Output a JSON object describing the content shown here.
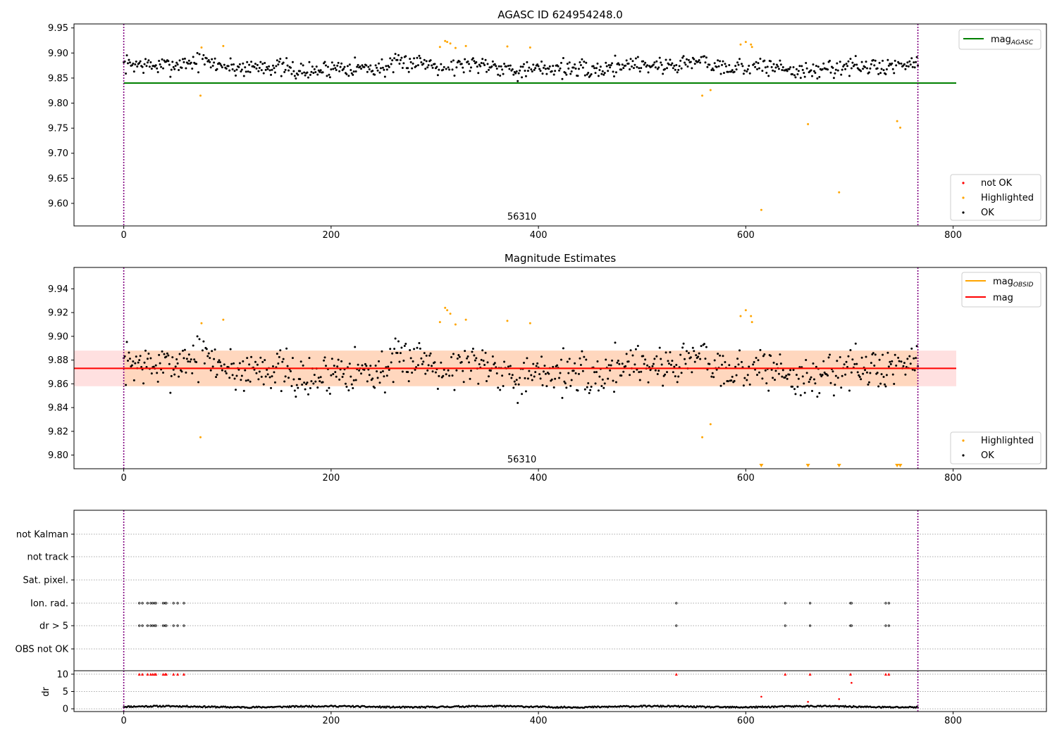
{
  "chart_data": [
    {
      "type": "scatter",
      "title": "AGASC ID 624954248.0",
      "xlim": [
        -48,
        890
      ],
      "ylim": [
        9.555,
        9.958
      ],
      "x_ticks": [
        0,
        200,
        400,
        600,
        800
      ],
      "y_ticks": [
        9.6,
        9.65,
        9.7,
        9.75,
        9.8,
        9.85,
        9.9,
        9.95
      ],
      "y_tick_labels": [
        "9.60",
        "9.65",
        "9.70",
        "9.75",
        "9.80",
        "9.85",
        "9.90",
        "9.95"
      ],
      "obsid_annotation": "56310",
      "obsid_x": 384,
      "vlines": [
        0,
        766
      ],
      "mag_agasc": 9.84,
      "mag_agasc_xrange": [
        0,
        803
      ],
      "ok_pattern": {
        "n": 767,
        "mean": 9.873,
        "amplitude": 0.018,
        "seed": 7
      },
      "highlighted_points": [
        [
          74,
          9.815
        ],
        [
          75,
          9.911
        ],
        [
          96,
          9.914
        ],
        [
          305,
          9.912
        ],
        [
          310,
          9.924
        ],
        [
          312,
          9.922
        ],
        [
          315,
          9.919
        ],
        [
          320,
          9.91
        ],
        [
          330,
          9.914
        ],
        [
          370,
          9.913
        ],
        [
          392,
          9.911
        ],
        [
          558,
          9.815
        ],
        [
          566,
          9.826
        ],
        [
          595,
          9.917
        ],
        [
          600,
          9.922
        ],
        [
          605,
          9.917
        ],
        [
          606,
          9.912
        ],
        [
          615,
          9.587
        ],
        [
          660,
          9.758
        ],
        [
          690,
          9.622
        ],
        [
          746,
          9.764
        ],
        [
          749,
          9.751
        ]
      ],
      "legend_top": [
        {
          "label": "mag",
          "sub": "AGASC",
          "color": "#008000"
        }
      ],
      "legend_bottom": [
        {
          "label": "not OK",
          "color": "#ff0000"
        },
        {
          "label": "Highlighted",
          "color": "#ffa500"
        },
        {
          "label": "OK",
          "color": "#000000"
        }
      ]
    },
    {
      "type": "scatter",
      "title": "Magnitude Estimates",
      "xlim": [
        -48,
        890
      ],
      "ylim": [
        9.7885,
        9.958
      ],
      "x_ticks": [
        0,
        200,
        400,
        600,
        800
      ],
      "y_ticks": [
        9.8,
        9.82,
        9.84,
        9.86,
        9.88,
        9.9,
        9.92,
        9.94
      ],
      "y_tick_labels": [
        "9.80",
        "9.82",
        "9.84",
        "9.86",
        "9.88",
        "9.90",
        "9.92",
        "9.94"
      ],
      "obsid_annotation": "56310",
      "obsid_x": 384,
      "vlines": [
        0,
        766
      ],
      "mag": 9.873,
      "mag_band": [
        9.858,
        9.888
      ],
      "mag_obsid_band": [
        9.858,
        9.888
      ],
      "band_xrange": [
        -48,
        803
      ],
      "obsid_band_xrange": [
        0,
        766
      ],
      "offscale_markers_x": [
        615,
        660,
        690,
        746,
        749
      ],
      "legend_top": [
        {
          "label": "mag",
          "sub": "OBSID",
          "color": "#ffa500"
        },
        {
          "label": "mag",
          "sub": "",
          "color": "#ff0000"
        }
      ],
      "legend_bottom": [
        {
          "label": "Highlighted",
          "color": "#ffa500"
        },
        {
          "label": "OK",
          "color": "#000000"
        }
      ]
    },
    {
      "type": "scatter",
      "title": "",
      "xlim": [
        -48,
        890
      ],
      "x_ticks": [
        0,
        200,
        400,
        600,
        800
      ],
      "flag_rows": [
        "not Kalman",
        "not track",
        "Sat. pixel.",
        "Ion. rad.",
        "dr > 5",
        "OBS not OK"
      ],
      "flag_x": [
        15,
        18,
        23,
        26,
        28,
        30,
        31,
        38,
        40,
        41,
        48,
        52,
        58,
        533,
        638,
        662,
        701,
        702,
        735,
        738
      ],
      "ylabel": "dr",
      "dr_ylim": [
        -0.8,
        11
      ],
      "dr_ticks": [
        0,
        5,
        10
      ],
      "dr_tick_labels": [
        "0",
        "5",
        "10"
      ],
      "dr_clipped_x": [
        15,
        18,
        23,
        26,
        28,
        30,
        31,
        38,
        40,
        41,
        48,
        52,
        58,
        533,
        638,
        662,
        701,
        735,
        738
      ],
      "dr_points": [
        [
          615,
          3.5
        ],
        [
          690,
          2.8
        ],
        [
          702,
          7.5
        ],
        [
          660,
          2.0
        ]
      ],
      "dr_baseline": {
        "mean": 0.6,
        "amplitude": 0.4
      }
    }
  ]
}
